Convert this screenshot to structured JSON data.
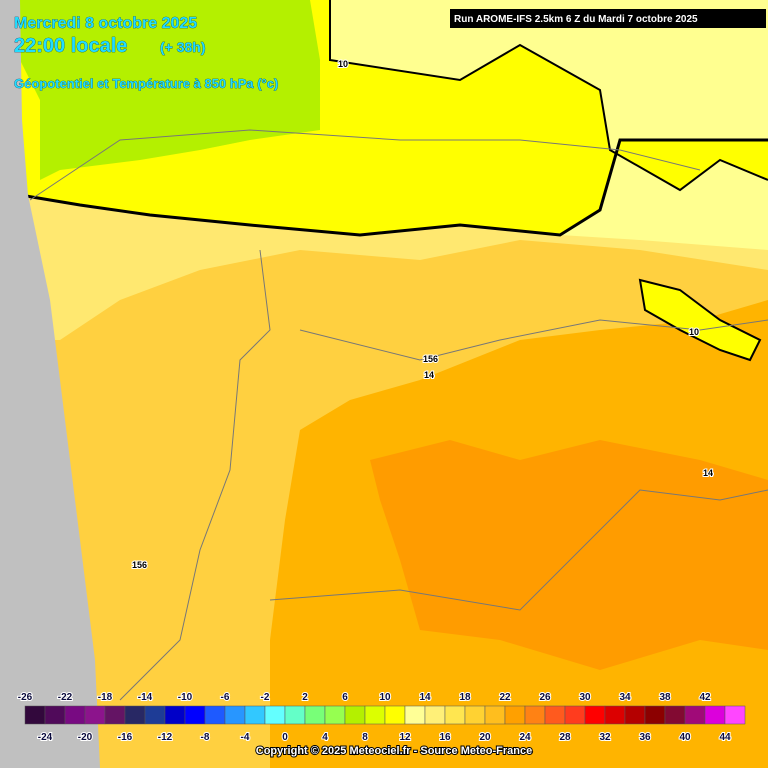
{
  "header": {
    "date": "Mercredi 8 octobre 2025",
    "time": "22:00 locale",
    "lead": "(+ 38h)",
    "field": "Géopotentiel et Température à 850 hPa (°c)",
    "run": "Run AROME-IFS 2.5km 6 Z du Mardi 7 octobre 2025"
  },
  "map": {
    "contour_labels": [
      "10",
      "10",
      "156",
      "14",
      "14",
      "156"
    ]
  },
  "legend": {
    "values": [
      -26,
      -24,
      -22,
      -20,
      -18,
      -16,
      -14,
      -12,
      -10,
      -8,
      -6,
      -4,
      -2,
      0,
      2,
      4,
      6,
      8,
      10,
      12,
      14,
      16,
      18,
      20,
      22,
      24,
      26,
      28,
      30,
      32,
      34,
      36,
      38,
      40,
      42,
      44
    ],
    "colors": [
      "#32083c",
      "#500a5a",
      "#780a82",
      "#8c148c",
      "#641464",
      "#282864",
      "#1e3c96",
      "#0000c8",
      "#0000ff",
      "#1e5aff",
      "#2896ff",
      "#32c8ff",
      "#64ffff",
      "#64ffc8",
      "#78ff78",
      "#96ff50",
      "#b4f000",
      "#dcff00",
      "#ffff00",
      "#ffff96",
      "#fff078",
      "#ffe650",
      "#ffd232",
      "#ffbe1e",
      "#ffa000",
      "#ff8214",
      "#ff5a1e",
      "#ff3c1e",
      "#ff0000",
      "#dc0000",
      "#b40000",
      "#8c0000",
      "#820a32",
      "#a00a78",
      "#dc00dc",
      "#ff46ff"
    ]
  },
  "footer": {
    "copyright": "Copyright © 2025 Meteociel.fr - Source Meteo-France"
  }
}
